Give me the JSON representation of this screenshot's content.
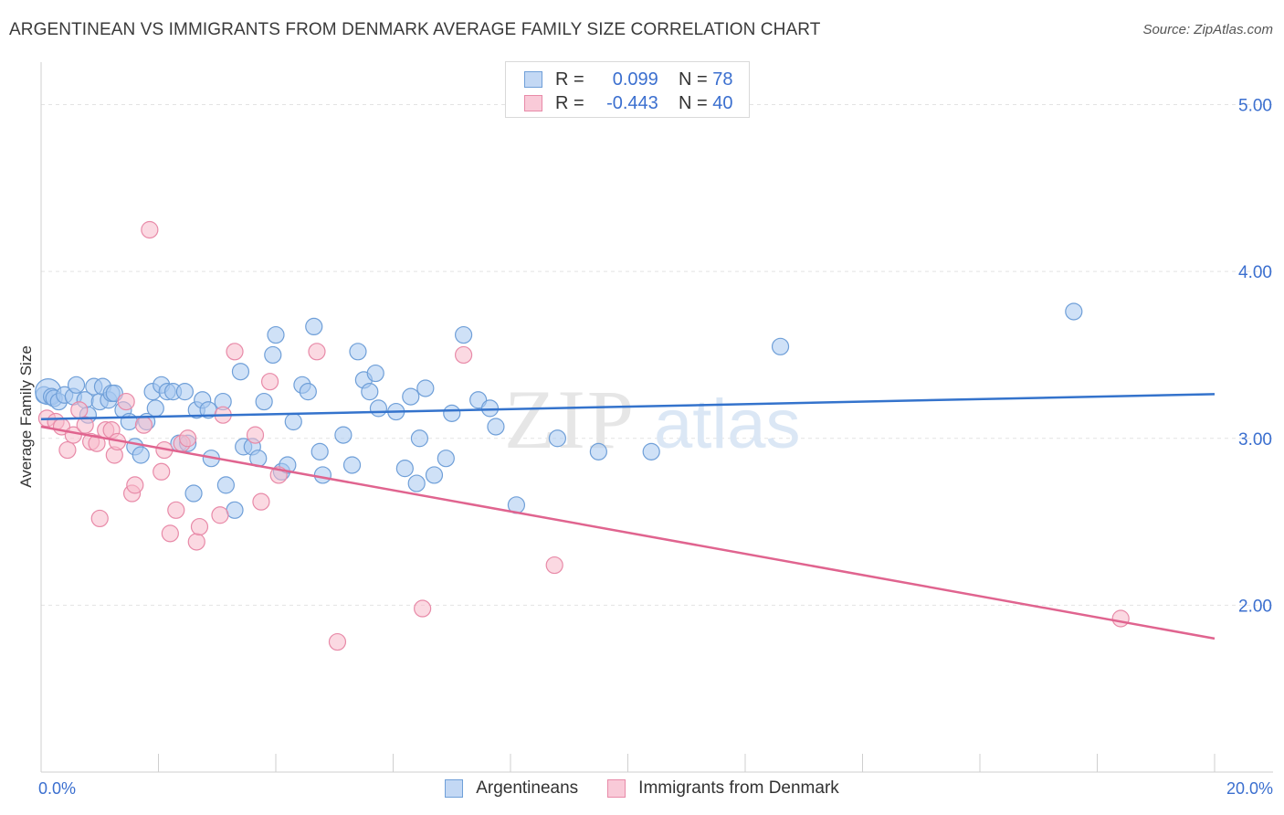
{
  "title": "ARGENTINEAN VS IMMIGRANTS FROM DENMARK AVERAGE FAMILY SIZE CORRELATION CHART",
  "source": "Source: ZipAtlas.com",
  "watermark": {
    "zip": "ZIP",
    "atlas": "atlas"
  },
  "legend_top": [
    {
      "r_label": "R =",
      "r_value": "0.099",
      "n_label": "N =",
      "n_value": "78"
    },
    {
      "r_label": "R =",
      "r_value": "-0.443",
      "n_label": "N =",
      "n_value": "40"
    }
  ],
  "legend_bottom": [
    "Argentineans",
    "Immigrants from Denmark"
  ],
  "colors": {
    "blue_fill": "#a8c8f0",
    "blue_edge": "#6f9fd8",
    "blue_line": "#3473cc",
    "pink_fill": "#f7b9cb",
    "pink_edge": "#e88aa8",
    "pink_line": "#e0648f",
    "tick_label": "#3b6fcf",
    "grid": "#e3e3e3"
  },
  "chart_data": {
    "type": "scatter",
    "xlabel": "",
    "ylabel": "Average Family Size",
    "xlim": [
      0,
      20
    ],
    "ylim": [
      1.0,
      5.2
    ],
    "x_tick_labels": [
      "0.0%",
      "20.0%"
    ],
    "y_ticks": [
      2.0,
      3.0,
      4.0,
      5.0
    ],
    "y_tick_labels": [
      "2.00",
      "3.00",
      "4.00",
      "5.00"
    ],
    "grid": true,
    "series": [
      {
        "name": "Argentineans",
        "color": "#6f9fd8",
        "points": [
          [
            0.05,
            3.26
          ],
          [
            0.12,
            3.28
          ],
          [
            0.18,
            3.25
          ],
          [
            0.22,
            3.24
          ],
          [
            0.3,
            3.22
          ],
          [
            0.4,
            3.26
          ],
          [
            0.55,
            3.25
          ],
          [
            0.6,
            3.32
          ],
          [
            0.75,
            3.23
          ],
          [
            0.8,
            3.14
          ],
          [
            0.9,
            3.31
          ],
          [
            1.0,
            3.22
          ],
          [
            1.05,
            3.31
          ],
          [
            1.15,
            3.23
          ],
          [
            1.2,
            3.27
          ],
          [
            1.25,
            3.27
          ],
          [
            1.4,
            3.17
          ],
          [
            1.5,
            3.1
          ],
          [
            1.6,
            2.95
          ],
          [
            1.7,
            2.9
          ],
          [
            1.8,
            3.1
          ],
          [
            1.9,
            3.28
          ],
          [
            1.95,
            3.18
          ],
          [
            2.05,
            3.32
          ],
          [
            2.15,
            3.28
          ],
          [
            2.25,
            3.28
          ],
          [
            2.35,
            2.97
          ],
          [
            2.45,
            3.28
          ],
          [
            2.5,
            2.97
          ],
          [
            2.6,
            2.67
          ],
          [
            2.65,
            3.17
          ],
          [
            2.75,
            3.23
          ],
          [
            2.85,
            3.17
          ],
          [
            2.9,
            2.88
          ],
          [
            3.1,
            3.22
          ],
          [
            3.15,
            2.72
          ],
          [
            3.3,
            2.57
          ],
          [
            3.4,
            3.4
          ],
          [
            3.45,
            2.95
          ],
          [
            3.6,
            2.95
          ],
          [
            3.7,
            2.88
          ],
          [
            3.8,
            3.22
          ],
          [
            3.95,
            3.5
          ],
          [
            4.0,
            3.62
          ],
          [
            4.1,
            2.8
          ],
          [
            4.2,
            2.84
          ],
          [
            4.3,
            3.1
          ],
          [
            4.45,
            3.32
          ],
          [
            4.55,
            3.28
          ],
          [
            4.65,
            3.67
          ],
          [
            4.75,
            2.92
          ],
          [
            4.8,
            2.78
          ],
          [
            5.15,
            3.02
          ],
          [
            5.3,
            2.84
          ],
          [
            5.4,
            3.52
          ],
          [
            5.5,
            3.35
          ],
          [
            5.6,
            3.28
          ],
          [
            5.7,
            3.39
          ],
          [
            5.75,
            3.18
          ],
          [
            6.05,
            3.16
          ],
          [
            6.2,
            2.82
          ],
          [
            6.3,
            3.25
          ],
          [
            6.4,
            2.73
          ],
          [
            6.45,
            3.0
          ],
          [
            6.55,
            3.3
          ],
          [
            6.7,
            2.78
          ],
          [
            6.9,
            2.88
          ],
          [
            7.0,
            3.15
          ],
          [
            7.2,
            3.62
          ],
          [
            7.45,
            3.23
          ],
          [
            7.65,
            3.18
          ],
          [
            7.75,
            3.07
          ],
          [
            8.1,
            2.6
          ],
          [
            8.8,
            3.0
          ],
          [
            9.5,
            2.92
          ],
          [
            10.4,
            2.92
          ],
          [
            12.6,
            3.55
          ],
          [
            17.6,
            3.76
          ]
        ]
      },
      {
        "name": "Immigrants from Denmark",
        "color": "#e88aa8",
        "points": [
          [
            0.1,
            3.12
          ],
          [
            0.25,
            3.1
          ],
          [
            0.35,
            3.07
          ],
          [
            0.45,
            2.93
          ],
          [
            0.55,
            3.02
          ],
          [
            0.65,
            3.17
          ],
          [
            0.75,
            3.08
          ],
          [
            0.85,
            2.98
          ],
          [
            0.95,
            2.97
          ],
          [
            1.0,
            2.52
          ],
          [
            1.1,
            3.05
          ],
          [
            1.2,
            3.05
          ],
          [
            1.25,
            2.9
          ],
          [
            1.3,
            2.98
          ],
          [
            1.45,
            3.22
          ],
          [
            1.55,
            2.67
          ],
          [
            1.6,
            2.72
          ],
          [
            1.75,
            3.08
          ],
          [
            1.85,
            4.25
          ],
          [
            2.05,
            2.8
          ],
          [
            2.1,
            2.93
          ],
          [
            2.2,
            2.43
          ],
          [
            2.3,
            2.57
          ],
          [
            2.4,
            2.97
          ],
          [
            2.5,
            3.0
          ],
          [
            2.65,
            2.38
          ],
          [
            2.7,
            2.47
          ],
          [
            3.05,
            2.54
          ],
          [
            3.1,
            3.14
          ],
          [
            3.3,
            3.52
          ],
          [
            3.65,
            3.02
          ],
          [
            3.75,
            2.62
          ],
          [
            3.9,
            3.34
          ],
          [
            4.05,
            2.78
          ],
          [
            4.7,
            3.52
          ],
          [
            5.05,
            1.78
          ],
          [
            6.5,
            1.98
          ],
          [
            7.2,
            3.5
          ],
          [
            8.75,
            2.24
          ],
          [
            18.4,
            1.92
          ]
        ]
      }
    ],
    "trend_lines": [
      {
        "name": "Argentineans",
        "x": [
          0,
          20
        ],
        "y": [
          3.115,
          3.265
        ]
      },
      {
        "name": "Immigrants from Denmark",
        "x": [
          0,
          20
        ],
        "y": [
          3.07,
          1.8
        ]
      }
    ]
  }
}
